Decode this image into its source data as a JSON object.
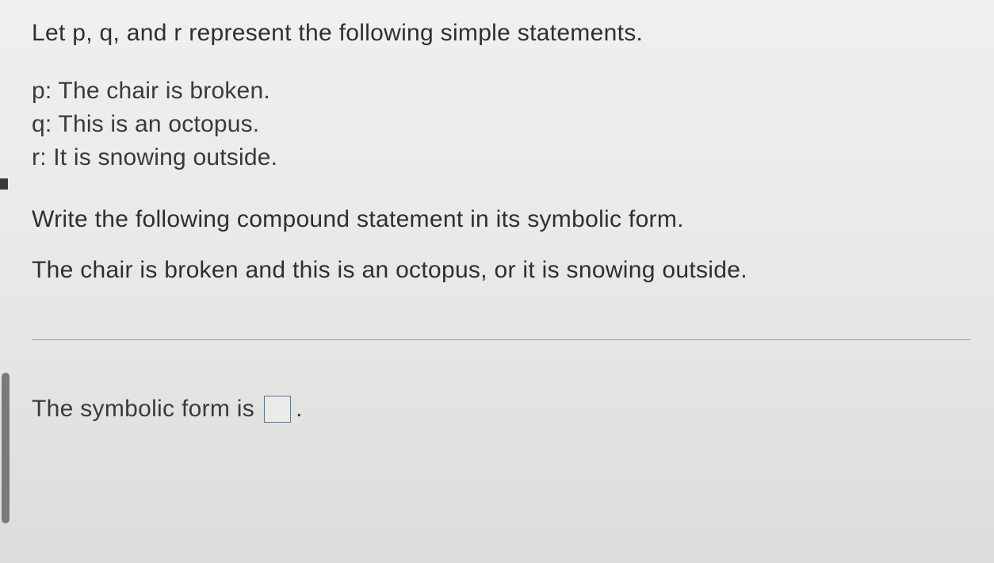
{
  "intro": "Let p, q, and r represent the following simple statements.",
  "definitions": {
    "p": "p: The chair is broken.",
    "q": "q: This is an octopus.",
    "r": "r: It is snowing outside."
  },
  "instruction": "Write the following compound statement in its symbolic form.",
  "compound_statement": "The chair is broken and this is an octopus, or it is snowing outside.",
  "answer_prompt": "The symbolic form is",
  "answer_value": "",
  "period": ".",
  "styling": {
    "background_color": "#e8e8e6",
    "text_color": "#2f2f2f",
    "font_size_pt": 22,
    "font_family": "Arial",
    "input_border_color": "#4a7aa8",
    "divider_color": "#9a9a98",
    "scrollbar_color": "#7a7a78"
  }
}
